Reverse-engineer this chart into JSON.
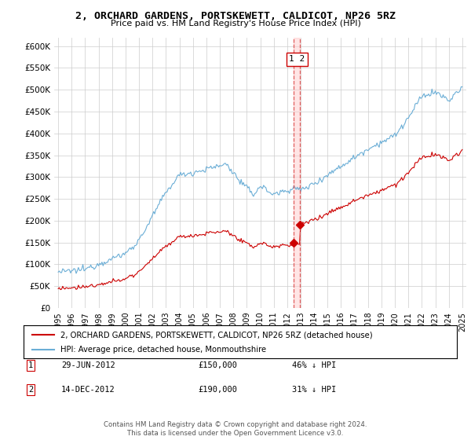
{
  "title": "2, ORCHARD GARDENS, PORTSKEWETT, CALDICOT, NP26 5RZ",
  "subtitle": "Price paid vs. HM Land Registry's House Price Index (HPI)",
  "hpi_label": "HPI: Average price, detached house, Monmouthshire",
  "property_label": "2, ORCHARD GARDENS, PORTSKEWETT, CALDICOT, NP26 5RZ (detached house)",
  "hpi_color": "#6baed6",
  "property_color": "#cc0000",
  "dashed_color": "#e06060",
  "ylim": [
    0,
    620000
  ],
  "yticks": [
    0,
    50000,
    100000,
    150000,
    200000,
    250000,
    300000,
    350000,
    400000,
    450000,
    500000,
    550000,
    600000
  ],
  "transaction1": {
    "date": "29-JUN-2012",
    "price": 150000,
    "pct": "46% ↓ HPI",
    "label": "1"
  },
  "transaction2": {
    "date": "14-DEC-2012",
    "price": 190000,
    "pct": "31% ↓ HPI",
    "label": "2"
  },
  "transaction1_x": 2012.49,
  "transaction2_x": 2012.95,
  "footer": "Contains HM Land Registry data © Crown copyright and database right 2024.\nThis data is licensed under the Open Government Licence v3.0.",
  "background_color": "#ffffff",
  "grid_color": "#cccccc"
}
